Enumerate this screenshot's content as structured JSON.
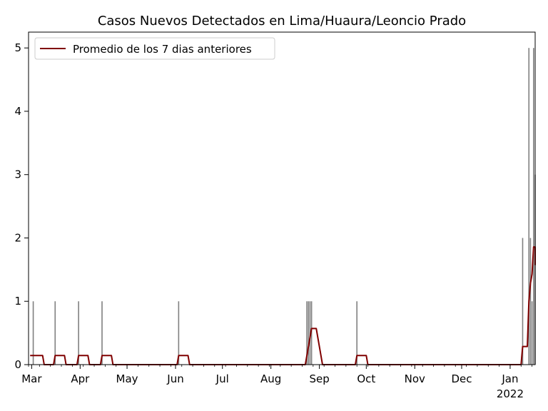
{
  "chart_data": {
    "type": "bar",
    "title": "Casos Nuevos Detectados en Lima/Huaura/Leoncio Prado",
    "xlabel": "",
    "ylabel": "",
    "x_range": [
      "2021-02-27",
      "2022-01-17"
    ],
    "ylim": [
      0,
      5.25
    ],
    "x_ticks": [
      {
        "date": "2021-03-01",
        "label": "Mar"
      },
      {
        "date": "2021-04-01",
        "label": "Apr"
      },
      {
        "date": "2021-05-01",
        "label": "May"
      },
      {
        "date": "2021-06-01",
        "label": "Jun"
      },
      {
        "date": "2021-07-01",
        "label": "Jul"
      },
      {
        "date": "2021-08-01",
        "label": "Aug"
      },
      {
        "date": "2021-09-01",
        "label": "Sep"
      },
      {
        "date": "2021-10-01",
        "label": "Oct"
      },
      {
        "date": "2021-11-01",
        "label": "Nov"
      },
      {
        "date": "2021-12-01",
        "label": "Dec"
      },
      {
        "date": "2022-01-01",
        "label": "Jan"
      }
    ],
    "x_year_label": "2022",
    "y_ticks": [
      0,
      1,
      2,
      3,
      4,
      5
    ],
    "grid": false,
    "legend": {
      "position": "top-left",
      "entries": [
        "Promedio de los 7 dias anteriores"
      ]
    },
    "bars": {
      "color": "#808080",
      "points": [
        {
          "date": "2021-03-02",
          "value": 1
        },
        {
          "date": "2021-03-16",
          "value": 1
        },
        {
          "date": "2021-03-31",
          "value": 1
        },
        {
          "date": "2021-04-15",
          "value": 1
        },
        {
          "date": "2021-06-03",
          "value": 1
        },
        {
          "date": "2021-08-24",
          "value": 1
        },
        {
          "date": "2021-08-25",
          "value": 1
        },
        {
          "date": "2021-08-26",
          "value": 1
        },
        {
          "date": "2021-08-27",
          "value": 1
        },
        {
          "date": "2021-09-25",
          "value": 1
        },
        {
          "date": "2022-01-09",
          "value": 2
        },
        {
          "date": "2022-01-13",
          "value": 5
        },
        {
          "date": "2022-01-14",
          "value": 2
        },
        {
          "date": "2022-01-15",
          "value": 1
        },
        {
          "date": "2022-01-16",
          "value": 5
        },
        {
          "date": "2022-01-17",
          "value": 3
        }
      ]
    },
    "series": [
      {
        "name": "Promedio de los 7 dias anteriores",
        "color": "#800000",
        "points": [
          {
            "date": "2021-02-28",
            "value": 0.143
          },
          {
            "date": "2021-03-02",
            "value": 0.143
          },
          {
            "date": "2021-03-08",
            "value": 0.143
          },
          {
            "date": "2021-03-09",
            "value": 0
          },
          {
            "date": "2021-03-15",
            "value": 0
          },
          {
            "date": "2021-03-16",
            "value": 0.143
          },
          {
            "date": "2021-03-22",
            "value": 0.143
          },
          {
            "date": "2021-03-23",
            "value": 0
          },
          {
            "date": "2021-03-30",
            "value": 0
          },
          {
            "date": "2021-03-31",
            "value": 0.143
          },
          {
            "date": "2021-04-06",
            "value": 0.143
          },
          {
            "date": "2021-04-07",
            "value": 0
          },
          {
            "date": "2021-04-14",
            "value": 0
          },
          {
            "date": "2021-04-15",
            "value": 0.143
          },
          {
            "date": "2021-04-21",
            "value": 0.143
          },
          {
            "date": "2021-04-22",
            "value": 0
          },
          {
            "date": "2021-06-02",
            "value": 0
          },
          {
            "date": "2021-06-03",
            "value": 0.143
          },
          {
            "date": "2021-06-09",
            "value": 0.143
          },
          {
            "date": "2021-06-10",
            "value": 0
          },
          {
            "date": "2021-08-23",
            "value": 0
          },
          {
            "date": "2021-08-27",
            "value": 0.571
          },
          {
            "date": "2021-08-30",
            "value": 0.571
          },
          {
            "date": "2021-09-03",
            "value": 0
          },
          {
            "date": "2021-09-24",
            "value": 0
          },
          {
            "date": "2021-09-25",
            "value": 0.143
          },
          {
            "date": "2021-10-01",
            "value": 0.143
          },
          {
            "date": "2021-10-02",
            "value": 0
          },
          {
            "date": "2022-01-08",
            "value": 0
          },
          {
            "date": "2022-01-09",
            "value": 0.286
          },
          {
            "date": "2022-01-12",
            "value": 0.286
          },
          {
            "date": "2022-01-13",
            "value": 1.0
          },
          {
            "date": "2022-01-14",
            "value": 1.286
          },
          {
            "date": "2022-01-15",
            "value": 1.429
          },
          {
            "date": "2022-01-16",
            "value": 1.857
          },
          {
            "date": "2022-01-17",
            "value": 1.857
          },
          {
            "date": "2022-01-17",
            "value": 1.571
          }
        ]
      }
    ]
  }
}
